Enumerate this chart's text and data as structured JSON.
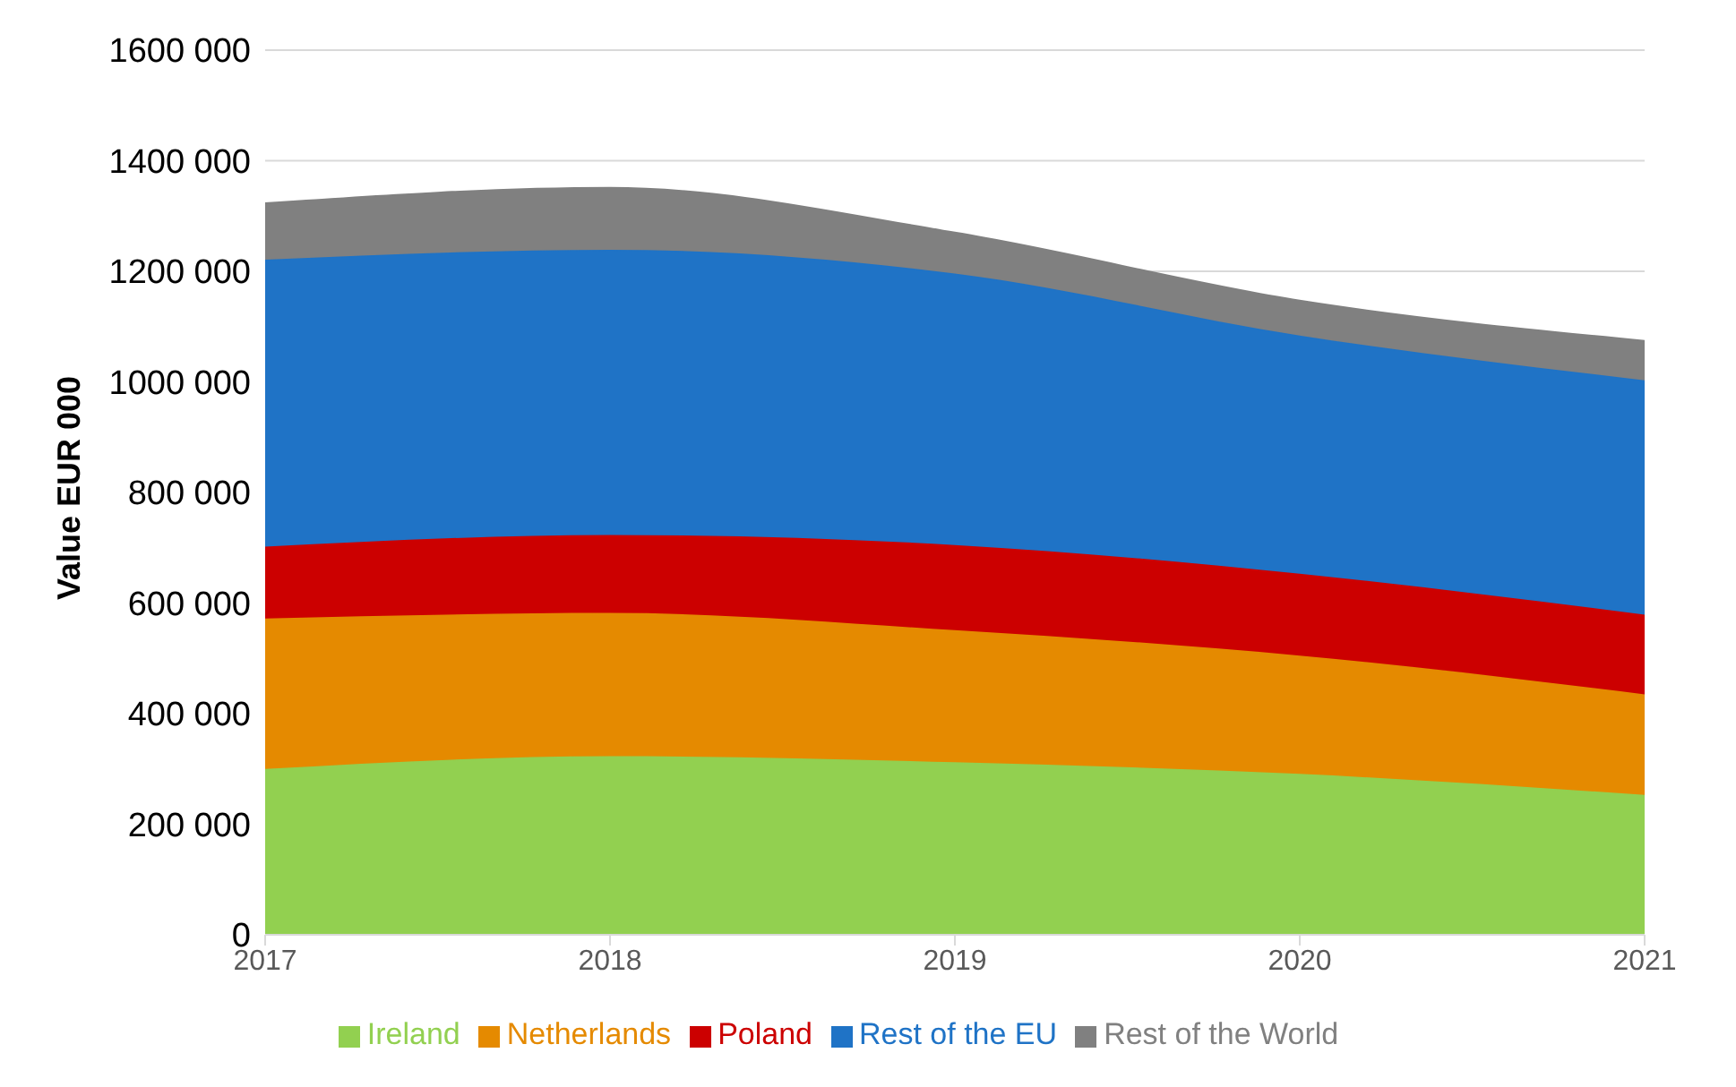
{
  "chart_data": {
    "type": "area",
    "stacked": true,
    "ylabel": "Value EUR 000",
    "categories": [
      "2017",
      "2018",
      "2019",
      "2020",
      "2021"
    ],
    "series": [
      {
        "name": "Ireland",
        "color": "#92d050",
        "values": [
          300000,
          323000,
          312000,
          291000,
          253000
        ]
      },
      {
        "name": "Netherlands",
        "color": "#e58a00",
        "values": [
          272000,
          259000,
          239000,
          214000,
          182000
        ]
      },
      {
        "name": "Poland",
        "color": "#cc0000",
        "values": [
          130000,
          141000,
          154000,
          148000,
          144000
        ]
      },
      {
        "name": "Rest of the EU",
        "color": "#1f73c6",
        "values": [
          519000,
          516000,
          491000,
          431000,
          424000
        ]
      },
      {
        "name": "Rest of the World",
        "color": "#808080",
        "values": [
          102000,
          112000,
          74000,
          63000,
          71000
        ]
      }
    ],
    "ylim": [
      0,
      1600000
    ],
    "yticks": [
      0,
      {
        "value": 200000,
        "label": "200 000"
      },
      {
        "value": 400000,
        "label": "400 000"
      },
      {
        "value": 600000,
        "label": "600 000"
      },
      {
        "value": 800000,
        "label": "800 000"
      },
      {
        "value": 1000000,
        "label": "1000 000"
      },
      {
        "value": 1200000,
        "label": "1200 000"
      },
      {
        "value": 1400000,
        "label": "1400 000"
      },
      {
        "value": 1600000,
        "label": "1600 000"
      }
    ],
    "grid": "y",
    "legend": "bottom"
  }
}
